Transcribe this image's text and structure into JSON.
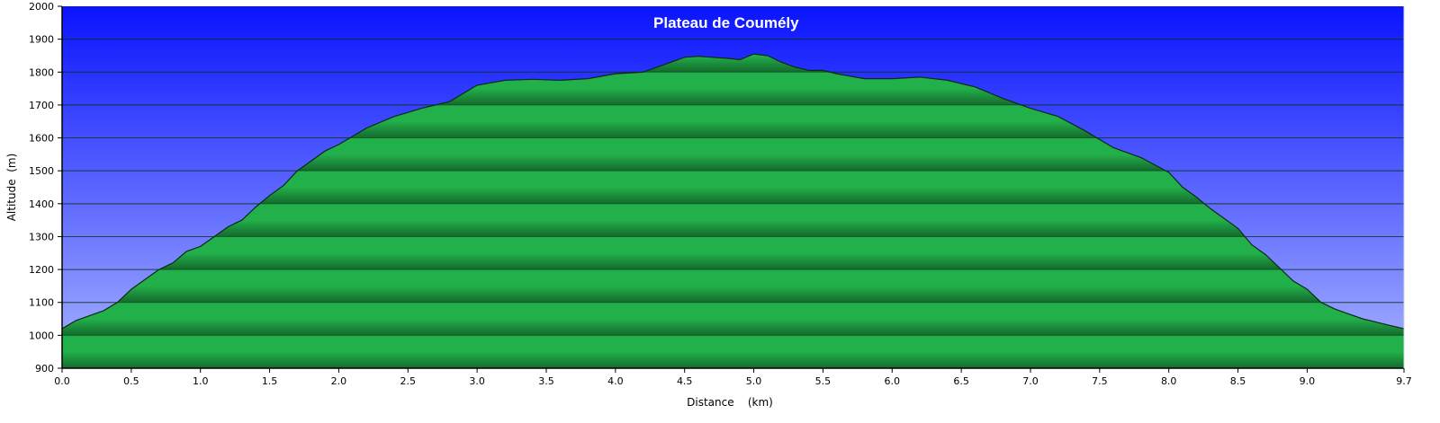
{
  "chart_data": {
    "type": "area",
    "title": "Plateau de Coumély",
    "xlabel": "Distance    (km)",
    "ylabel": "Altitude  (m)",
    "xlim": [
      0,
      9.7
    ],
    "ylim": [
      900,
      2000
    ],
    "x_ticks": [
      "0.0",
      "0.5",
      "1.0",
      "1.5",
      "2.0",
      "2.5",
      "3.0",
      "3.5",
      "4.0",
      "4.5",
      "5.0",
      "5.5",
      "6.0",
      "6.5",
      "7.0",
      "7.5",
      "8.0",
      "8.5",
      "9.0",
      "9.7"
    ],
    "y_ticks": [
      "2000",
      "1900",
      "1800",
      "1700",
      "1600",
      "1500",
      "1400",
      "1300",
      "1200",
      "1100",
      "1000",
      "900"
    ],
    "grid": true,
    "colors": {
      "sky_top": "#0a14ff",
      "sky_bottom": "#a8b4ff",
      "fill_light": "#22b04a",
      "fill_dark": "#146a2c",
      "profile_line": "#0b2a14",
      "gridline": "#1a1a1a"
    },
    "series": [
      {
        "x": [
          0.0,
          0.1,
          0.2,
          0.3,
          0.4,
          0.5,
          0.6,
          0.7,
          0.8,
          0.9,
          1.0,
          1.1,
          1.2,
          1.3,
          1.4,
          1.5,
          1.6,
          1.7,
          1.8,
          1.9,
          2.0,
          2.2,
          2.4,
          2.6,
          2.8,
          3.0,
          3.2,
          3.4,
          3.6,
          3.8,
          4.0,
          4.2,
          4.4,
          4.5,
          4.6,
          4.7,
          4.8,
          4.9,
          5.0,
          5.1,
          5.2,
          5.3,
          5.4,
          5.5,
          5.6,
          5.8,
          6.0,
          6.2,
          6.4,
          6.6,
          6.8,
          7.0,
          7.2,
          7.4,
          7.6,
          7.8,
          8.0,
          8.1,
          8.2,
          8.3,
          8.4,
          8.5,
          8.6,
          8.7,
          8.8,
          8.9,
          9.0,
          9.1,
          9.2,
          9.3,
          9.4,
          9.5,
          9.6,
          9.7
        ],
        "values": [
          1020,
          1045,
          1060,
          1075,
          1100,
          1140,
          1170,
          1200,
          1220,
          1255,
          1270,
          1300,
          1330,
          1350,
          1390,
          1425,
          1455,
          1500,
          1530,
          1560,
          1580,
          1630,
          1665,
          1690,
          1710,
          1760,
          1775,
          1778,
          1775,
          1780,
          1795,
          1800,
          1830,
          1845,
          1848,
          1845,
          1842,
          1838,
          1855,
          1850,
          1830,
          1815,
          1805,
          1805,
          1795,
          1780,
          1780,
          1785,
          1775,
          1755,
          1720,
          1690,
          1665,
          1620,
          1570,
          1540,
          1495,
          1450,
          1420,
          1385,
          1355,
          1325,
          1275,
          1245,
          1205,
          1165,
          1140,
          1100,
          1080,
          1065,
          1050,
          1040,
          1030,
          1020
        ]
      }
    ]
  }
}
